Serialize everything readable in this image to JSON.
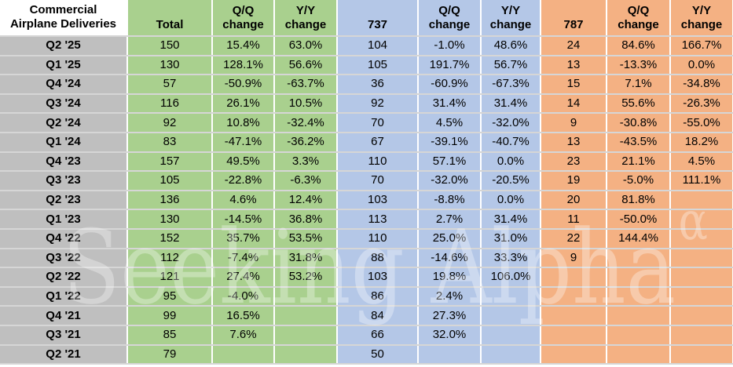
{
  "watermark": {
    "text": "Seeking Alpha",
    "superscript": "α"
  },
  "table": {
    "corner": {
      "line1": "Commercial",
      "line2": "Airplane Deliveries"
    },
    "headers": {
      "total": "Total",
      "b737": "737",
      "b787": "787",
      "qq_line1": "Q/Q",
      "qq_line2": "change",
      "yy_line1": "Y/Y",
      "yy_line2": "change"
    },
    "colors": {
      "label_column_bg": "#BFBFBF",
      "total_group_bg": "#A9D08E",
      "group_737_bg": "#B4C7E7",
      "group_787_bg": "#F4B183",
      "grid_vertical": "#FFFFFF",
      "grid_horizontal": "#D6D6D6",
      "text": "#000000"
    }
  },
  "chart_data": {
    "type": "table",
    "title": "Commercial Airplane Deliveries",
    "columns": [
      "Commercial Airplane Deliveries",
      "Total",
      "Q/Q change",
      "Y/Y change",
      "737",
      "Q/Q change",
      "Y/Y change",
      "787",
      "Q/Q change",
      "Y/Y change"
    ],
    "rows": [
      [
        "Q2 '25",
        "150",
        "15.4%",
        "63.0%",
        "104",
        "-1.0%",
        "48.6%",
        "24",
        "84.6%",
        "166.7%"
      ],
      [
        "Q1 '25",
        "130",
        "128.1%",
        "56.6%",
        "105",
        "191.7%",
        "56.7%",
        "13",
        "-13.3%",
        "0.0%"
      ],
      [
        "Q4 '24",
        "57",
        "-50.9%",
        "-63.7%",
        "36",
        "-60.9%",
        "-67.3%",
        "15",
        "7.1%",
        "-34.8%"
      ],
      [
        "Q3 '24",
        "116",
        "26.1%",
        "10.5%",
        "92",
        "31.4%",
        "31.4%",
        "14",
        "55.6%",
        "-26.3%"
      ],
      [
        "Q2 '24",
        "92",
        "10.8%",
        "-32.4%",
        "70",
        "4.5%",
        "-32.0%",
        "9",
        "-30.8%",
        "-55.0%"
      ],
      [
        "Q1 '24",
        "83",
        "-47.1%",
        "-36.2%",
        "67",
        "-39.1%",
        "-40.7%",
        "13",
        "-43.5%",
        "18.2%"
      ],
      [
        "Q4 '23",
        "157",
        "49.5%",
        "3.3%",
        "110",
        "57.1%",
        "0.0%",
        "23",
        "21.1%",
        "4.5%"
      ],
      [
        "Q3 '23",
        "105",
        "-22.8%",
        "-6.3%",
        "70",
        "-32.0%",
        "-20.5%",
        "19",
        "-5.0%",
        "111.1%"
      ],
      [
        "Q2 '23",
        "136",
        "4.6%",
        "12.4%",
        "103",
        "-8.8%",
        "0.0%",
        "20",
        "81.8%",
        ""
      ],
      [
        "Q1 '23",
        "130",
        "-14.5%",
        "36.8%",
        "113",
        "2.7%",
        "31.4%",
        "11",
        "-50.0%",
        ""
      ],
      [
        "Q4 '22",
        "152",
        "35.7%",
        "53.5%",
        "110",
        "25.0%",
        "31.0%",
        "22",
        "144.4%",
        ""
      ],
      [
        "Q3 '22",
        "112",
        "-7.4%",
        "31.8%",
        "88",
        "-14.6%",
        "33.3%",
        "9",
        "",
        ""
      ],
      [
        "Q2 '22",
        "121",
        "27.4%",
        "53.2%",
        "103",
        "19.8%",
        "106.0%",
        "",
        "",
        ""
      ],
      [
        "Q1 '22",
        "95",
        "-4.0%",
        "",
        "86",
        "2.4%",
        "",
        "",
        "",
        ""
      ],
      [
        "Q4 '21",
        "99",
        "16.5%",
        "",
        "84",
        "27.3%",
        "",
        "",
        "",
        ""
      ],
      [
        "Q3 '21",
        "85",
        "7.6%",
        "",
        "66",
        "32.0%",
        "",
        "",
        "",
        ""
      ],
      [
        "Q2 '21",
        "79",
        "",
        "",
        "50",
        "",
        "",
        "",
        "",
        ""
      ]
    ]
  }
}
